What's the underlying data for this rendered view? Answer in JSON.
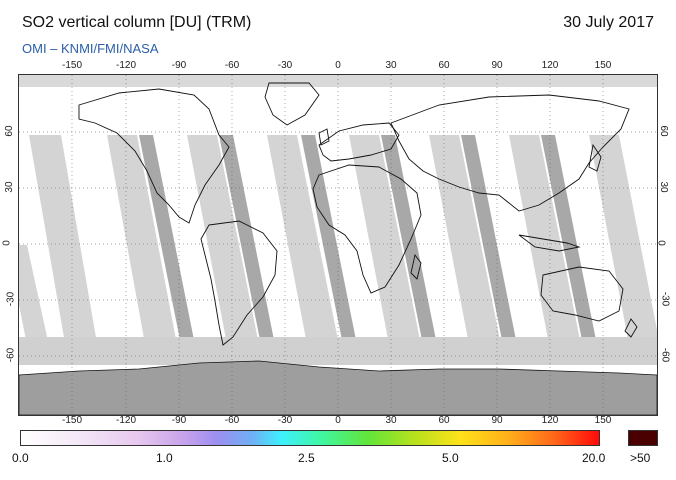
{
  "header": {
    "title": "SO2 vertical column [DU] (TRM)",
    "date": "30 July 2017",
    "credit": "OMI  –  KNMI/FMI/NASA"
  },
  "map": {
    "lon_ticks": [
      "-150",
      "-120",
      "-90",
      "-60",
      "-30",
      "0",
      "30",
      "60",
      "90",
      "120",
      "150"
    ],
    "lat_ticks": [
      "60",
      "30",
      "0",
      "-30",
      "-60"
    ],
    "colors": {
      "land_outline": "#111111",
      "swath_light": "#d3d3d3",
      "swath_dark": "#a6a6a6",
      "antarctica": "#9e9e9e"
    }
  },
  "colorbar": {
    "labels": [
      "0.0",
      "1.0",
      "2.5",
      "5.0",
      "20.0"
    ],
    "overflow_label": ">50"
  }
}
